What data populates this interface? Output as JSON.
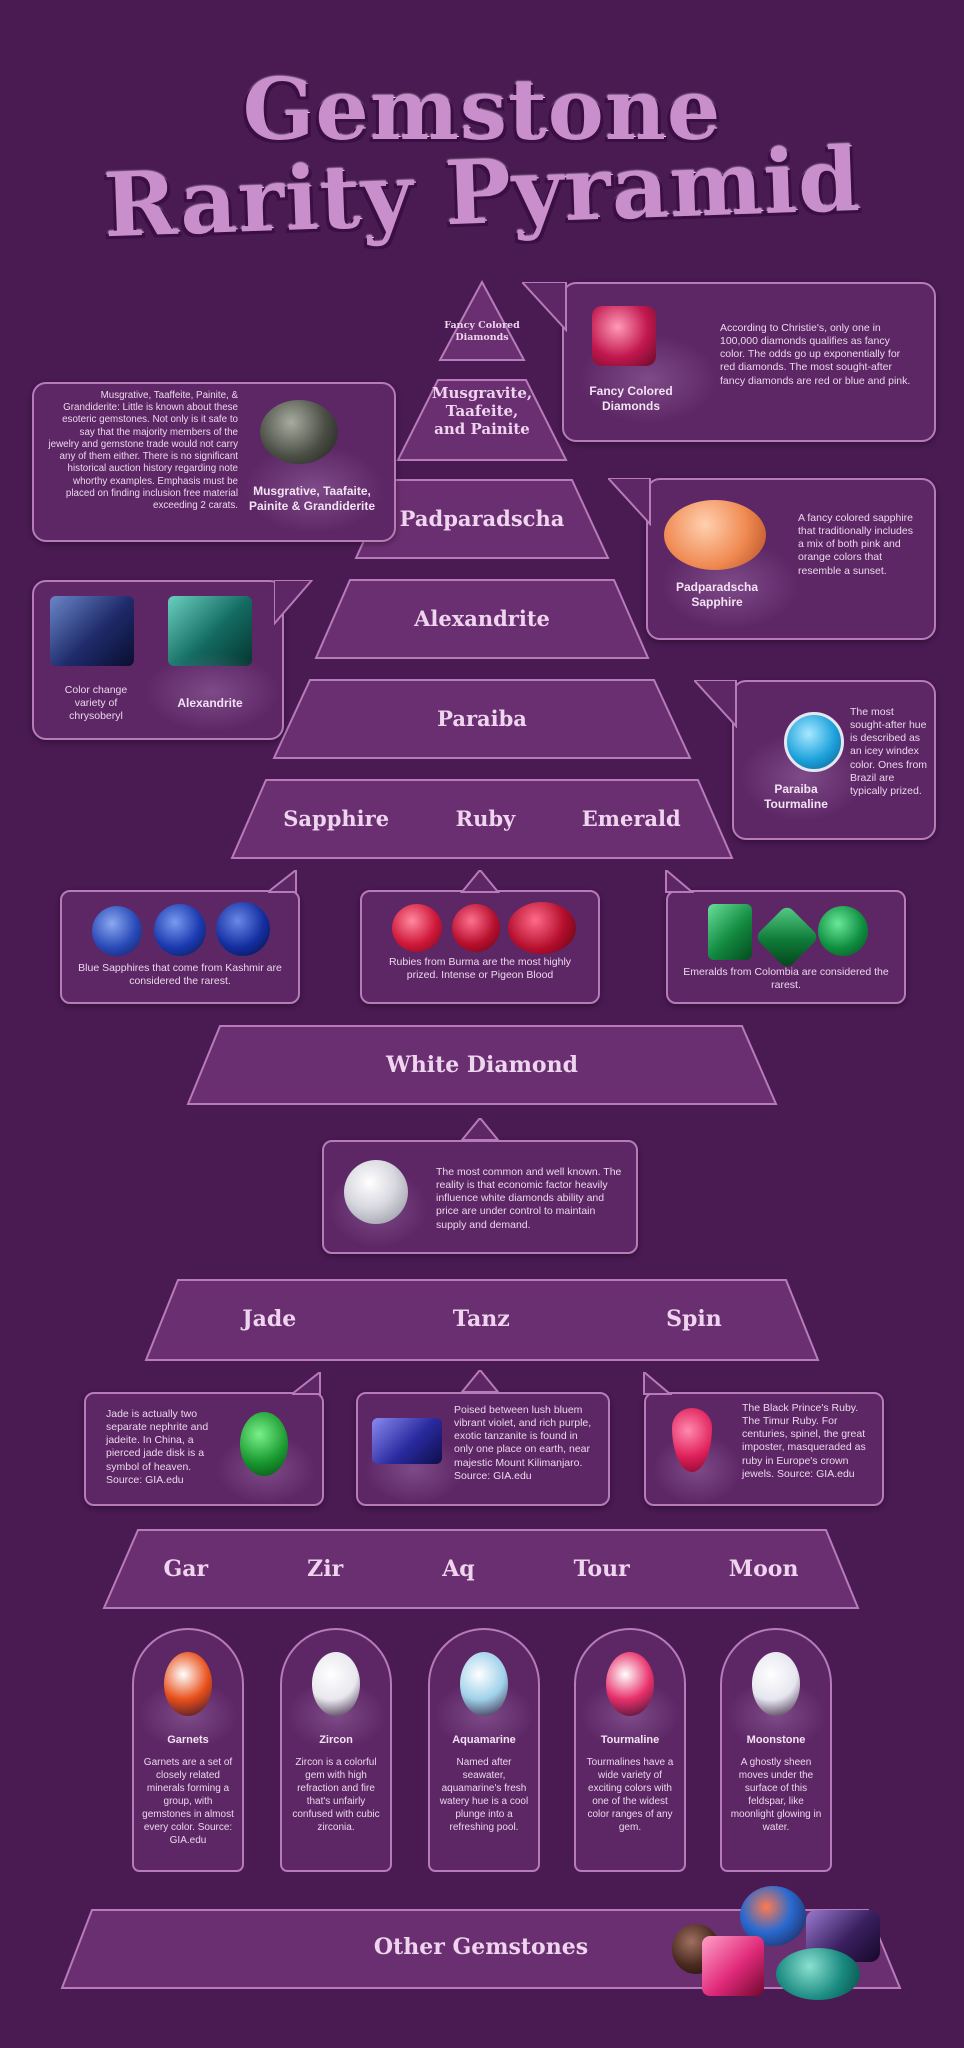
{
  "title": {
    "line1": "Gemstone",
    "line2": "Rarity Pyramid"
  },
  "tiers": {
    "fancy": "Fancy Colored Diamonds",
    "musgravite": "Musgravite, Taafeite, and Painite",
    "padparadscha": "Padparadscha",
    "alexandrite": "Alexandrite",
    "paraiba": "Paraiba",
    "big3": [
      "Sapphire",
      "Ruby",
      "Emerald"
    ],
    "white": "White Diamond",
    "mid": [
      "Jade",
      "Tanz",
      "Spin"
    ],
    "low": [
      "Gar",
      "Zir",
      "Aq",
      "Tour",
      "Moon"
    ],
    "other": "Other Gemstones"
  },
  "callouts": {
    "fancy": {
      "caption": "Fancy Colored Diamonds",
      "text": "According to Christie's, only one in 100,000 diamonds qualifies as fancy color. The odds go up exponentially for red diamonds. The most sought-after fancy diamonds are red or blue and pink."
    },
    "musgravite": {
      "caption": "Musgrative, Taafaite, Painite & Grandiderite",
      "text": "Musgrative, Taaffeite, Painite, & Grandiderite: Little is known about these esoteric gemstones. Not only is it safe to say that the majority members of the jewelry and gemstone trade would not carry any of them either. There is no significant historical auction history regarding note whorthy examples. Emphasis must be placed on finding inclusion free material exceeding 2 carats."
    },
    "padparadscha": {
      "caption": "Padparadscha Sapphire",
      "text": "A fancy colored sapphire that traditionally includes a mix of both pink and orange colors that resemble a sunset."
    },
    "alexandrite": {
      "caption": "Alexandrite",
      "text": "Color change variety of chrysoberyl"
    },
    "paraiba": {
      "caption": "Paraiba Tourmaline",
      "text": "The most sought-after hue is described as an icey windex color. Ones from Brazil are typically prized."
    },
    "sapphire": {
      "text": "Blue Sapphires that come from Kashmir are considered the rarest."
    },
    "ruby": {
      "text": "Rubies from Burma are the most highly prized. Intense or Pigeon Blood"
    },
    "emerald": {
      "text": "Emeralds from Colombia are considered the rarest."
    },
    "white": {
      "text": "The most common and well known. The reality is that economic factor heavily influence white diamonds ability and price are under control to maintain supply and demand."
    },
    "jade": {
      "text": "Jade is actually two separate nephrite and jadeite. In China, a pierced jade disk is a symbol of heaven. Source: GIA.edu"
    },
    "tanz": {
      "text": "Poised between lush bluem vibrant violet, and rich purple, exotic tanzanite is found in only one place on earth, near majestic Mount Kilimanjaro. Source: GIA.edu"
    },
    "spin": {
      "text": "The Black Prince's Ruby. The Timur Ruby. For centuries, spinel, the great imposter, masqueraded as ruby in Europe's crown jewels. Source: GIA.edu"
    }
  },
  "arches": [
    {
      "name": "Garnets",
      "text": "Garnets are a set of closely related minerals forming a group, with gemstones in almost every color. Source: GIA.edu",
      "color": "#e8501a"
    },
    {
      "name": "Zircon",
      "text": "Zircon is a colorful gem with high refraction and fire that's unfairly confused with cubic zirconia.",
      "color": "#e8e8ee"
    },
    {
      "name": "Aquamarine",
      "text": "Named after seawater, aquamarine's fresh watery hue is a cool plunge into a refreshing pool.",
      "color": "#9fd1ea"
    },
    {
      "name": "Tourmaline",
      "text": "Tourmalines have a wide variety of exciting colors with one of the widest color ranges of any gem.",
      "color": "#e8306a"
    },
    {
      "name": "Moonstone",
      "text": "A ghostly sheen moves under the surface of this feldspar, like moonlight glowing in water.",
      "color": "#e6e6f0"
    }
  ],
  "colors": {
    "background": "#4a1a53",
    "tier": "#6a2f70",
    "border": "#b67bb8"
  }
}
